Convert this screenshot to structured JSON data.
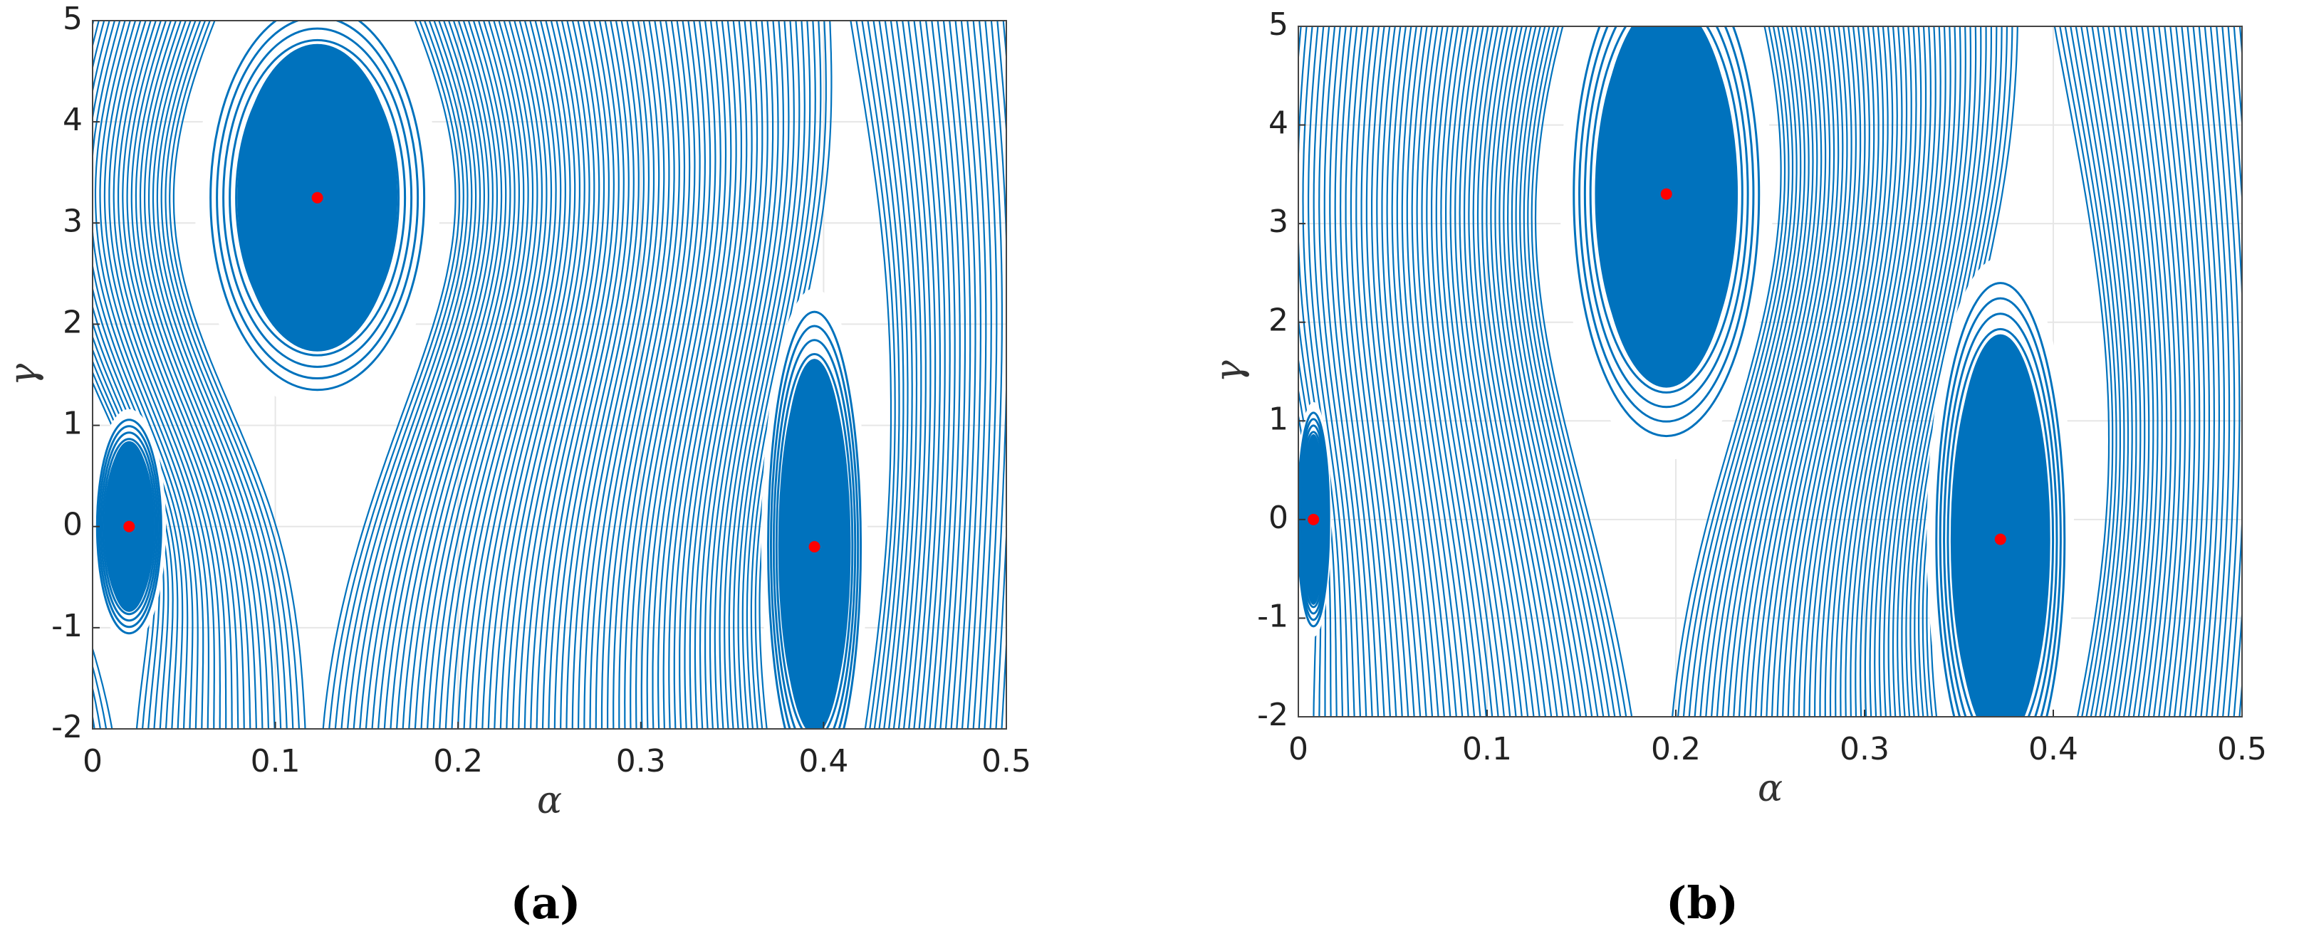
{
  "chart_data": [
    {
      "type": "scatter",
      "caption": "(a)",
      "xlabel": "α",
      "ylabel": "γ",
      "x": [
        0.02,
        0.123,
        0.395
      ],
      "values": [
        0,
        3.25,
        -0.2
      ],
      "color": "#ff0000",
      "line_color": "#0072bd",
      "xlim": [
        0,
        0.5
      ],
      "ylim": [
        -2,
        5
      ],
      "xticks": [
        0,
        0.1,
        0.2,
        0.3,
        0.4,
        0.5
      ],
      "yticks": [
        -2,
        -1,
        0,
        1,
        2,
        3,
        4,
        5
      ],
      "grid": true
    },
    {
      "type": "scatter",
      "caption": "(b)",
      "xlabel": "α",
      "ylabel": "γ",
      "x": [
        0.008,
        0.195,
        0.372
      ],
      "values": [
        0,
        3.3,
        -0.2
      ],
      "color": "#ff0000",
      "line_color": "#0072bd",
      "xlim": [
        0,
        0.5
      ],
      "ylim": [
        -2,
        5
      ],
      "xticks": [
        0,
        0.1,
        0.2,
        0.3,
        0.4,
        0.5
      ],
      "yticks": [
        -2,
        -1,
        0,
        1,
        2,
        3,
        4,
        5
      ],
      "grid": true
    }
  ]
}
